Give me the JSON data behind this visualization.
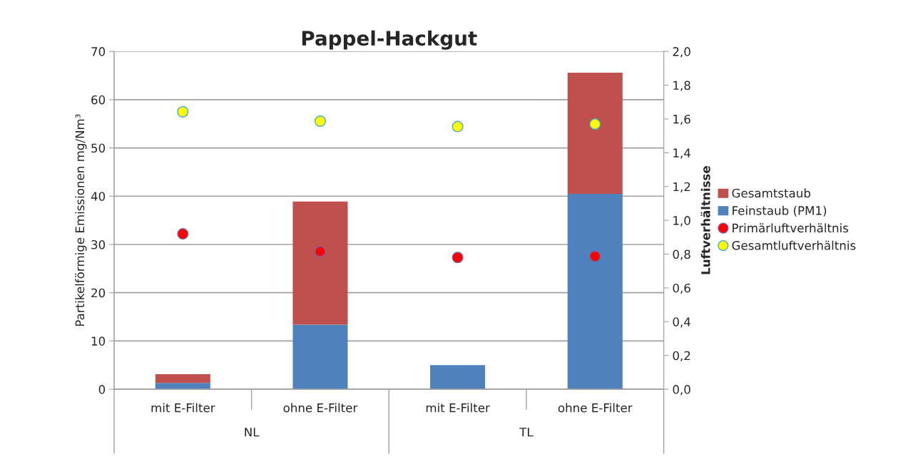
{
  "chart_data": {
    "type": "bar",
    "title": "Pappel-Hackgut",
    "ylabel": "Partikelförmige Emissionen mg/Nm³",
    "y2label": "Luftverhältnisse",
    "categories": [
      "mit E-Filter",
      "ohne E-Filter",
      "mit E-Filter",
      "ohne E-Filter"
    ],
    "stacked": true,
    "series": [
      {
        "name": "Feinstaub (PM1)",
        "color": "#4f81bd",
        "values": [
          1.3,
          13.4,
          5.0,
          40.5
        ]
      },
      {
        "name": "Gesamtstaub",
        "color": "#c0504d",
        "values": [
          1.8,
          25.5,
          null,
          25.1
        ]
      },
      {
        "name": "Primärluftverhältnis",
        "type": "scatter",
        "axis": "y2",
        "color": "#ff0000",
        "values": [
          0.92,
          0.815,
          0.78,
          0.787
        ]
      },
      {
        "name": "Gesamtluftverhältnis",
        "type": "scatter",
        "axis": "y2",
        "color": "#ffff00",
        "values": [
          1.643,
          1.587,
          1.555,
          1.57
        ]
      }
    ],
    "annotations": [
      "NL",
      "TL"
    ],
    "ylim": [
      0,
      70
    ],
    "yticks": [
      0,
      10,
      20,
      30,
      40,
      50,
      60,
      70
    ],
    "y2lim": [
      0,
      2
    ],
    "y2ticks": [
      {
        "value": 0,
        "label": "0,0"
      },
      {
        "value": 0.2,
        "label": "0,2"
      },
      {
        "value": 0.4,
        "label": "0,4"
      },
      {
        "value": 0.6,
        "label": "0,6"
      },
      {
        "value": 0.8,
        "label": "0,8"
      },
      {
        "value": 1.0,
        "label": "1,0"
      },
      {
        "value": 1.2,
        "label": "1,2"
      },
      {
        "value": 1.4,
        "label": "1,4"
      },
      {
        "value": 1.6,
        "label": "1,6"
      },
      {
        "value": 1.8,
        "label": "1,8"
      },
      {
        "value": 2.0,
        "label": "2,0"
      }
    ],
    "grid": "y",
    "legend": "right",
    "marker": "circle"
  }
}
